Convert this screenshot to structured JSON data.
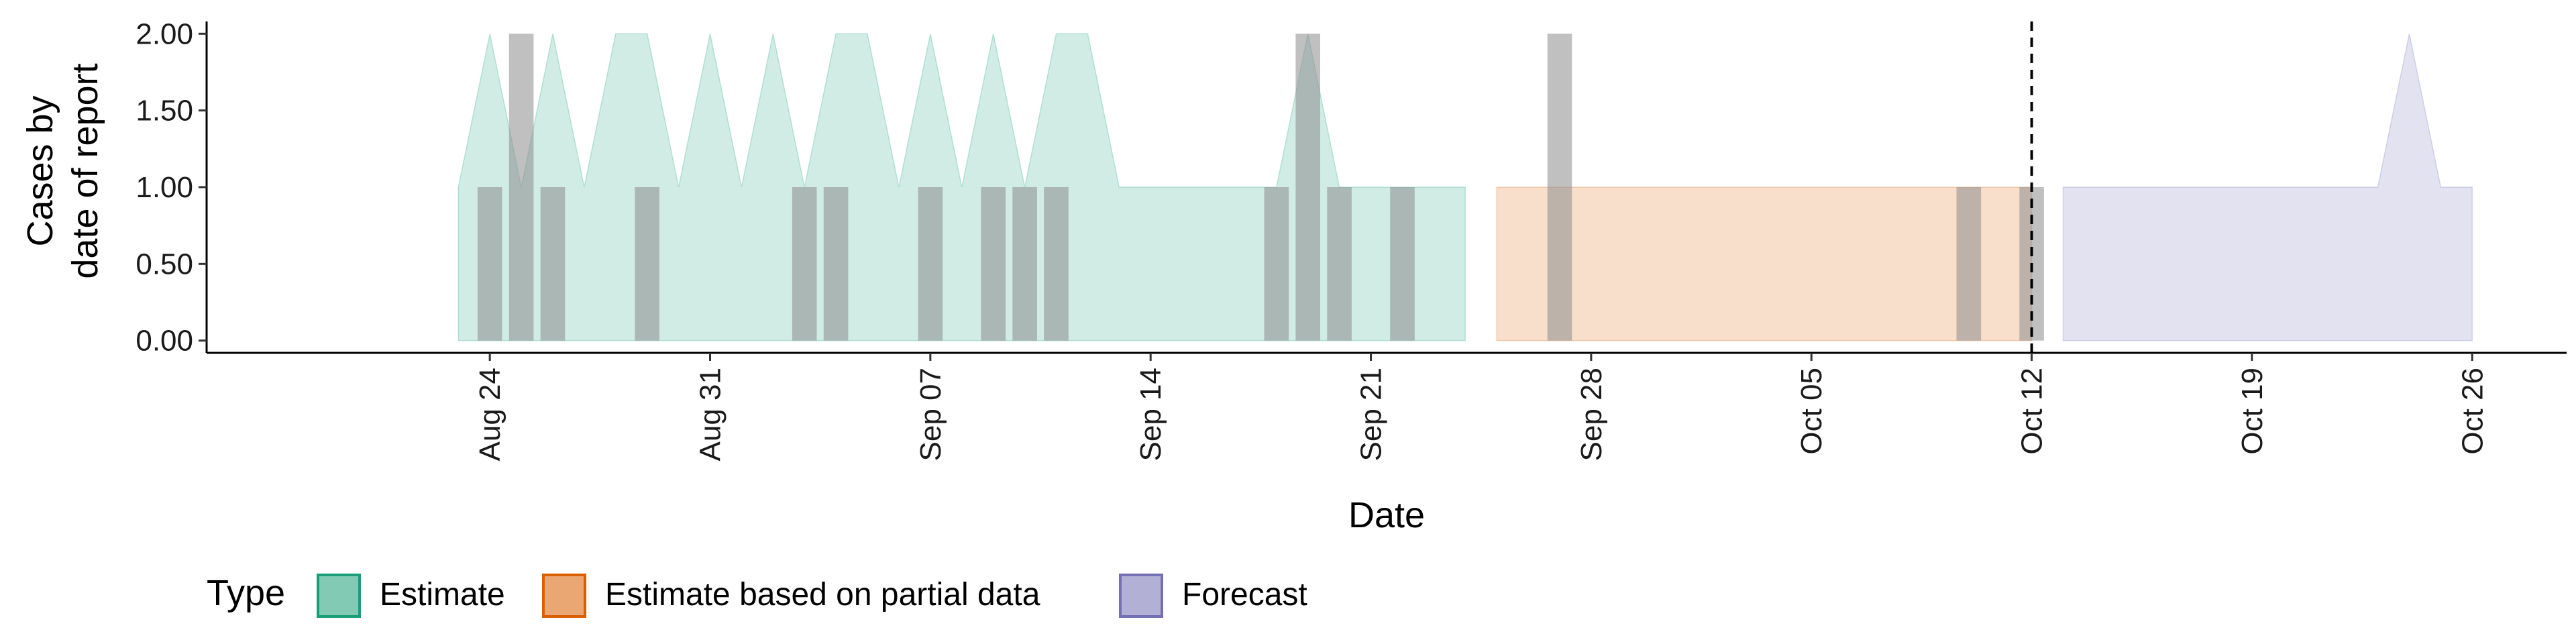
{
  "chart_data": {
    "type": "area",
    "xlabel": "Date",
    "ylabel_lines": [
      "Cases by",
      "date of report"
    ],
    "ylim": [
      -0.08,
      2.08
    ],
    "y_ticks": [
      0.0,
      0.5,
      1.0,
      1.5,
      2.0
    ],
    "y_tick_labels": [
      "0.00",
      "0.50",
      "1.00",
      "1.50",
      "2.00"
    ],
    "x_range": [
      "2020-08-15",
      "2020-10-29"
    ],
    "x_ticks": [
      "2020-08-24",
      "2020-08-31",
      "2020-09-07",
      "2020-09-14",
      "2020-09-21",
      "2020-09-28",
      "2020-10-05",
      "2020-10-12",
      "2020-10-19",
      "2020-10-26"
    ],
    "x_tick_labels": [
      "Aug 24",
      "Aug 31",
      "Sep 07",
      "Sep 14",
      "Sep 21",
      "Sep 28",
      "Oct 05",
      "Oct 12",
      "Oct 19",
      "Oct 26"
    ],
    "forecast_date": "2020-10-12",
    "series": [
      {
        "name": "Estimate",
        "fill": "#1b9e77",
        "x": [
          "2020-08-23",
          "2020-08-24",
          "2020-08-25",
          "2020-08-26",
          "2020-08-27",
          "2020-08-28",
          "2020-08-29",
          "2020-08-30",
          "2020-08-31",
          "2020-09-01",
          "2020-09-02",
          "2020-09-03",
          "2020-09-04",
          "2020-09-05",
          "2020-09-06",
          "2020-09-07",
          "2020-09-08",
          "2020-09-09",
          "2020-09-10",
          "2020-09-11",
          "2020-09-12",
          "2020-09-13",
          "2020-09-14",
          "2020-09-15",
          "2020-09-16",
          "2020-09-17",
          "2020-09-18",
          "2020-09-19",
          "2020-09-20",
          "2020-09-21",
          "2020-09-22",
          "2020-09-23",
          "2020-09-24"
        ],
        "upper": [
          1,
          2,
          1,
          2,
          1,
          2,
          2,
          1,
          2,
          1,
          2,
          1,
          2,
          2,
          1,
          2,
          1,
          2,
          1,
          2,
          2,
          1,
          1,
          1,
          1,
          1,
          1,
          2,
          1,
          1,
          1,
          1,
          1
        ],
        "lower": [
          0,
          0,
          0,
          0,
          0,
          0,
          0,
          0,
          0,
          0,
          0,
          0,
          0,
          0,
          0,
          0,
          0,
          0,
          0,
          0,
          0,
          0,
          0,
          0,
          0,
          0,
          0,
          0,
          0,
          0,
          0,
          0,
          0
        ]
      },
      {
        "name": "Estimate based on partial data",
        "fill": "#d95f02",
        "x": [
          "2020-09-25",
          "2020-09-26",
          "2020-09-27",
          "2020-09-28",
          "2020-09-29",
          "2020-09-30",
          "2020-10-01",
          "2020-10-02",
          "2020-10-03",
          "2020-10-04",
          "2020-10-05",
          "2020-10-06",
          "2020-10-07",
          "2020-10-08",
          "2020-10-09",
          "2020-10-10",
          "2020-10-11",
          "2020-10-12"
        ],
        "upper": [
          1,
          1,
          1,
          1,
          1,
          1,
          1,
          1,
          1,
          1,
          1,
          1,
          1,
          1,
          1,
          1,
          1,
          1
        ],
        "lower": [
          0,
          0,
          0,
          0,
          0,
          0,
          0,
          0,
          0,
          0,
          0,
          0,
          0,
          0,
          0,
          0,
          0,
          0
        ]
      },
      {
        "name": "Forecast",
        "fill": "#7570b3",
        "x": [
          "2020-10-13",
          "2020-10-14",
          "2020-10-15",
          "2020-10-16",
          "2020-10-17",
          "2020-10-18",
          "2020-10-19",
          "2020-10-20",
          "2020-10-21",
          "2020-10-22",
          "2020-10-23",
          "2020-10-24",
          "2020-10-25",
          "2020-10-26"
        ],
        "upper": [
          1,
          1,
          1,
          1,
          1,
          1,
          1,
          1,
          1,
          1,
          1,
          2,
          1,
          1
        ],
        "lower": [
          0,
          0,
          0,
          0,
          0,
          0,
          0,
          0,
          0,
          0,
          0,
          0,
          0,
          0
        ]
      }
    ],
    "reported_cases": {
      "fill": "#8c8c8c",
      "dates": [
        "2020-08-24",
        "2020-08-25",
        "2020-08-26",
        "2020-08-29",
        "2020-09-03",
        "2020-09-04",
        "2020-09-07",
        "2020-09-09",
        "2020-09-10",
        "2020-09-11",
        "2020-09-18",
        "2020-09-19",
        "2020-09-20",
        "2020-09-22",
        "2020-09-27",
        "2020-10-10",
        "2020-10-12"
      ],
      "values": [
        1,
        2,
        1,
        1,
        1,
        1,
        1,
        1,
        1,
        1,
        1,
        2,
        1,
        1,
        2,
        1,
        1
      ]
    },
    "legend": {
      "title": "Type",
      "position": "bottom-left",
      "items": [
        {
          "label": "Estimate",
          "fill": "#1b9e77"
        },
        {
          "label": "Estimate based on partial data",
          "fill": "#d95f02"
        },
        {
          "label": "Forecast",
          "fill": "#7570b3"
        }
      ]
    }
  }
}
